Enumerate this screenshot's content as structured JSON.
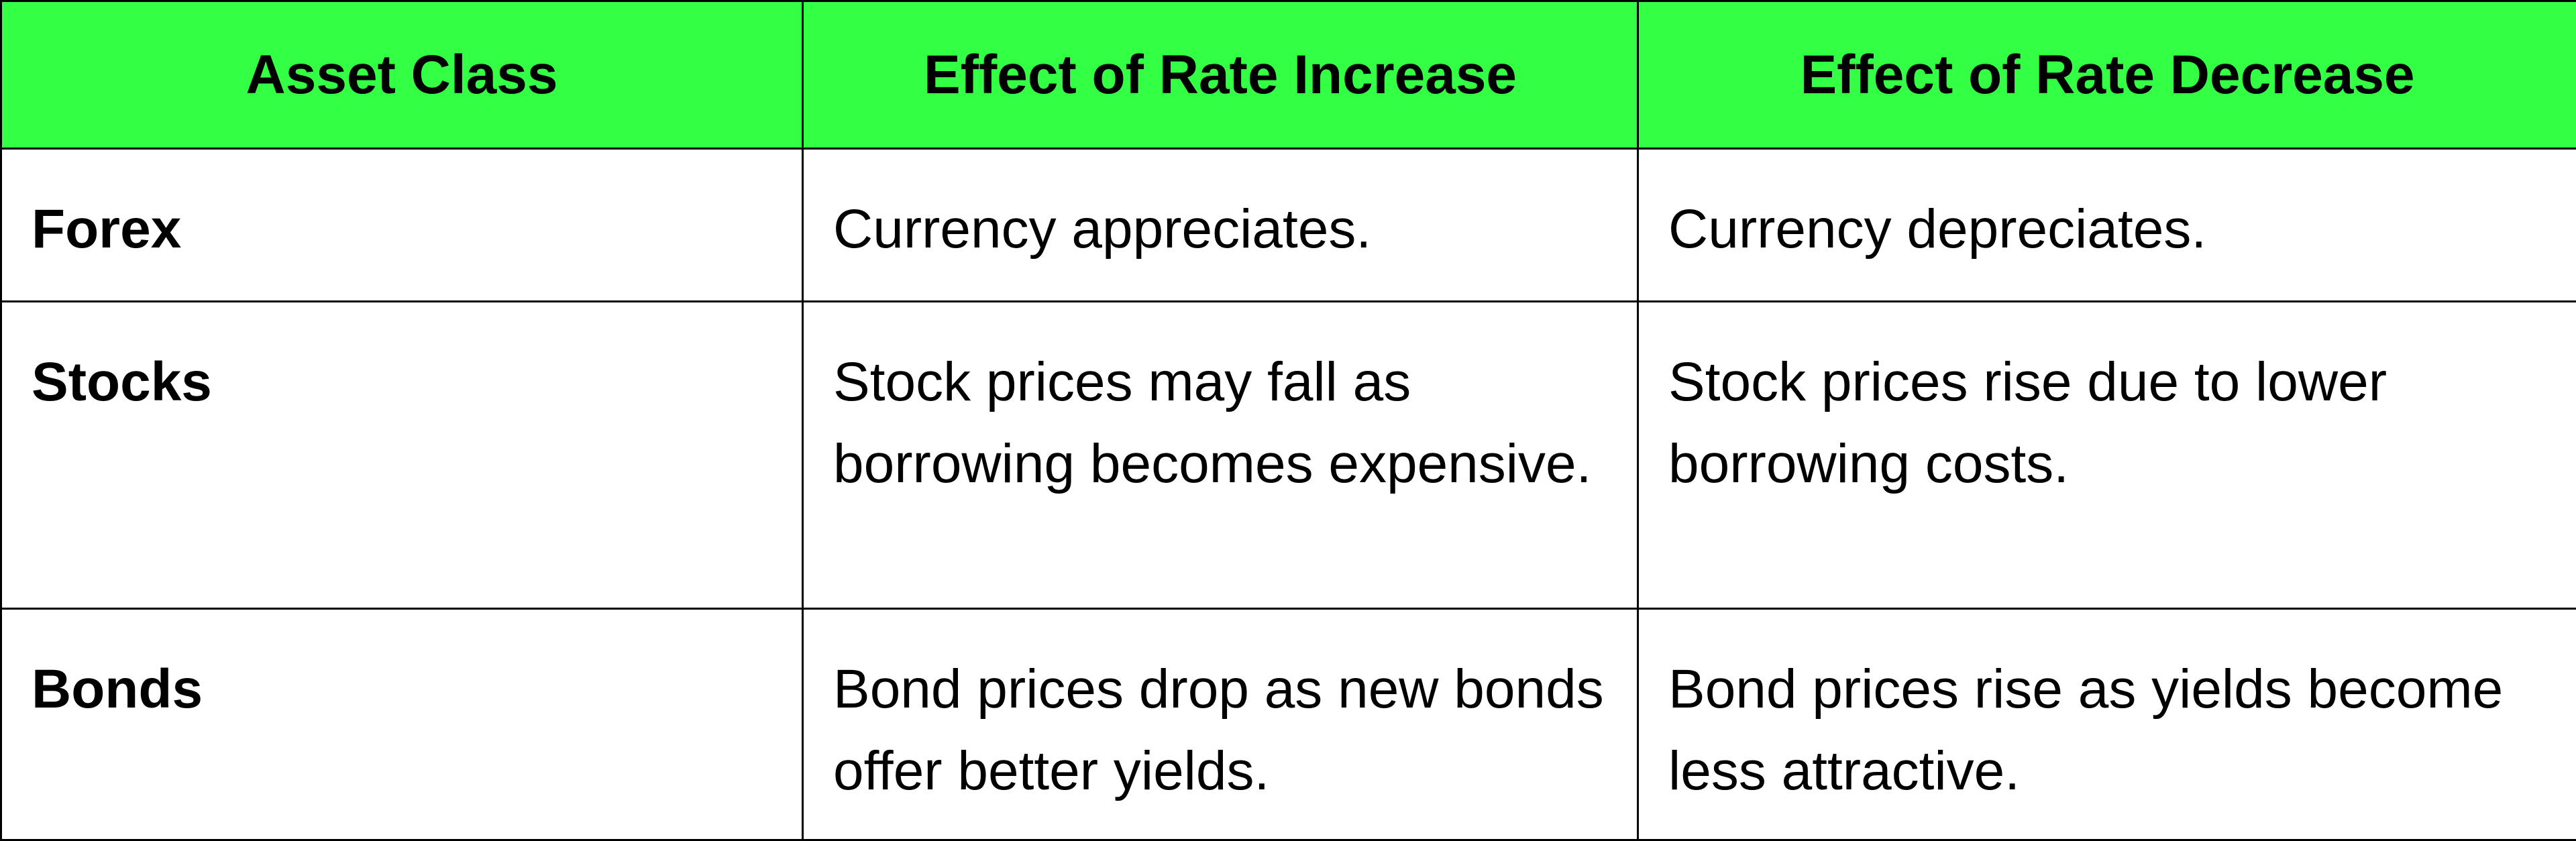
{
  "colors": {
    "header_background": "#33ff44",
    "border": "#000000",
    "text": "#000000",
    "cell_background": "#ffffff"
  },
  "table": {
    "headers": [
      "Asset Class",
      "Effect of Rate Increase",
      "Effect of Rate Decrease"
    ],
    "rows": [
      {
        "asset": "Forex",
        "increase": "Currency appreciates.",
        "decrease": "Currency depreciates."
      },
      {
        "asset": "Stocks",
        "increase": "Stock prices may fall as borrowing becomes expensive.",
        "decrease": "Stock prices rise due to lower borrowing costs."
      },
      {
        "asset": "Bonds",
        "increase": "Bond prices drop as new bonds offer better yields.",
        "decrease": "Bond prices rise as yields become less attractive."
      }
    ]
  }
}
